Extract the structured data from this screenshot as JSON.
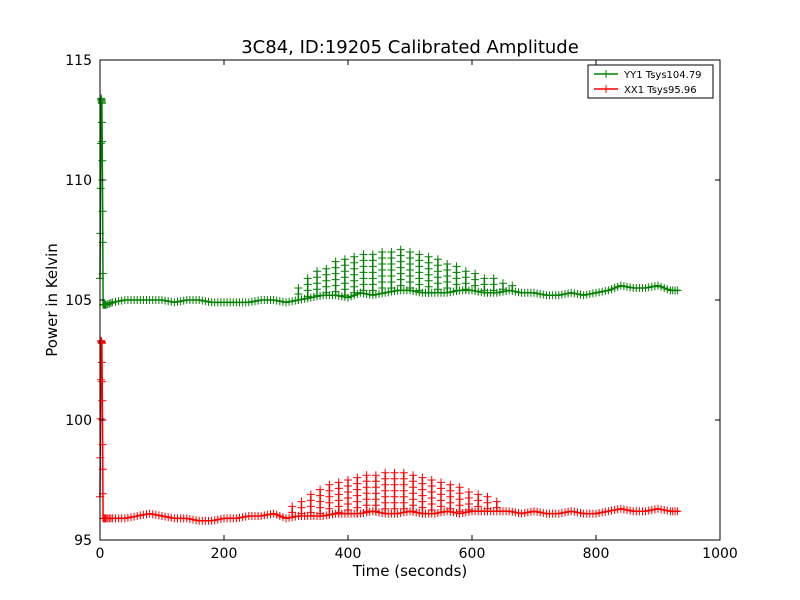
{
  "chart_data": {
    "type": "line",
    "title": "3C84, ID:19205 Calibrated Amplitude",
    "xlabel": "Time (seconds)",
    "ylabel": "Power in Kelvin",
    "xlim": [
      0,
      1000
    ],
    "ylim": [
      95,
      115
    ],
    "xticks": [
      "0",
      "200",
      "400",
      "600",
      "800",
      "1000"
    ],
    "yticks": [
      "95",
      "100",
      "105",
      "110",
      "115"
    ],
    "grid": false,
    "legend_position": "top-right",
    "marker": "+",
    "series": [
      {
        "name": "YY1 Tsys104.79",
        "color": "#008000",
        "x": [
          0,
          2,
          3,
          4,
          5,
          10,
          20,
          40,
          60,
          80,
          100,
          120,
          140,
          160,
          180,
          200,
          220,
          240,
          260,
          280,
          300,
          320,
          340,
          360,
          380,
          400,
          420,
          440,
          460,
          480,
          500,
          520,
          540,
          560,
          580,
          600,
          620,
          640,
          660,
          680,
          700,
          720,
          740,
          760,
          780,
          800,
          820,
          840,
          860,
          880,
          900,
          920,
          935
        ],
        "y": [
          105.9,
          113.4,
          113.2,
          110.0,
          104.8,
          104.8,
          104.9,
          105.0,
          105.0,
          105.0,
          105.0,
          104.9,
          105.0,
          105.0,
          104.9,
          104.9,
          104.9,
          104.9,
          105.0,
          105.0,
          104.9,
          105.0,
          105.1,
          105.2,
          105.2,
          105.1,
          105.3,
          105.2,
          105.3,
          105.4,
          105.4,
          105.3,
          105.3,
          105.3,
          105.4,
          105.4,
          105.3,
          105.3,
          105.4,
          105.3,
          105.3,
          105.2,
          105.2,
          105.3,
          105.2,
          105.3,
          105.4,
          105.6,
          105.5,
          105.5,
          105.6,
          105.4,
          105.4
        ],
        "spikes": [
          {
            "x": 320,
            "y": 105.5
          },
          {
            "x": 335,
            "y": 105.9
          },
          {
            "x": 350,
            "y": 106.2
          },
          {
            "x": 365,
            "y": 106.3
          },
          {
            "x": 380,
            "y": 106.6
          },
          {
            "x": 395,
            "y": 106.7
          },
          {
            "x": 410,
            "y": 106.8
          },
          {
            "x": 425,
            "y": 106.9
          },
          {
            "x": 440,
            "y": 106.9
          },
          {
            "x": 455,
            "y": 107.0
          },
          {
            "x": 470,
            "y": 107.0
          },
          {
            "x": 485,
            "y": 107.1
          },
          {
            "x": 500,
            "y": 107.0
          },
          {
            "x": 515,
            "y": 106.9
          },
          {
            "x": 530,
            "y": 106.8
          },
          {
            "x": 545,
            "y": 106.7
          },
          {
            "x": 560,
            "y": 106.5
          },
          {
            "x": 575,
            "y": 106.4
          },
          {
            "x": 590,
            "y": 106.2
          },
          {
            "x": 605,
            "y": 106.1
          },
          {
            "x": 620,
            "y": 105.9
          },
          {
            "x": 635,
            "y": 105.9
          },
          {
            "x": 650,
            "y": 105.7
          },
          {
            "x": 665,
            "y": 105.6
          }
        ]
      },
      {
        "name": "XX1 Tsys95.96",
        "color": "#ff0000",
        "x": [
          0,
          2,
          3,
          4,
          5,
          10,
          20,
          40,
          60,
          80,
          100,
          120,
          140,
          160,
          180,
          200,
          220,
          240,
          260,
          280,
          300,
          320,
          340,
          360,
          380,
          400,
          420,
          440,
          460,
          480,
          500,
          520,
          540,
          560,
          580,
          600,
          620,
          640,
          660,
          680,
          700,
          720,
          740,
          760,
          780,
          800,
          820,
          840,
          860,
          880,
          900,
          920,
          935
        ],
        "y": [
          96.8,
          103.3,
          103.2,
          100.0,
          95.9,
          95.9,
          95.9,
          95.9,
          96.0,
          96.1,
          96.0,
          95.9,
          95.9,
          95.8,
          95.8,
          95.9,
          95.9,
          96.0,
          96.0,
          96.1,
          95.9,
          96.0,
          96.0,
          96.0,
          96.1,
          96.1,
          96.1,
          96.2,
          96.1,
          96.1,
          96.2,
          96.1,
          96.1,
          96.2,
          96.1,
          96.2,
          96.2,
          96.2,
          96.2,
          96.1,
          96.2,
          96.1,
          96.1,
          96.2,
          96.1,
          96.1,
          96.2,
          96.3,
          96.2,
          96.2,
          96.3,
          96.2,
          96.2
        ],
        "spikes": [
          {
            "x": 310,
            "y": 96.4
          },
          {
            "x": 325,
            "y": 96.6
          },
          {
            "x": 340,
            "y": 96.9
          },
          {
            "x": 355,
            "y": 97.1
          },
          {
            "x": 370,
            "y": 97.3
          },
          {
            "x": 385,
            "y": 97.4
          },
          {
            "x": 400,
            "y": 97.5
          },
          {
            "x": 415,
            "y": 97.6
          },
          {
            "x": 430,
            "y": 97.7
          },
          {
            "x": 445,
            "y": 97.7
          },
          {
            "x": 460,
            "y": 97.8
          },
          {
            "x": 475,
            "y": 97.8
          },
          {
            "x": 490,
            "y": 97.8
          },
          {
            "x": 505,
            "y": 97.7
          },
          {
            "x": 520,
            "y": 97.6
          },
          {
            "x": 535,
            "y": 97.5
          },
          {
            "x": 550,
            "y": 97.4
          },
          {
            "x": 565,
            "y": 97.3
          },
          {
            "x": 580,
            "y": 97.2
          },
          {
            "x": 595,
            "y": 97.0
          },
          {
            "x": 610,
            "y": 96.9
          },
          {
            "x": 625,
            "y": 96.8
          },
          {
            "x": 640,
            "y": 96.6
          }
        ]
      }
    ]
  }
}
